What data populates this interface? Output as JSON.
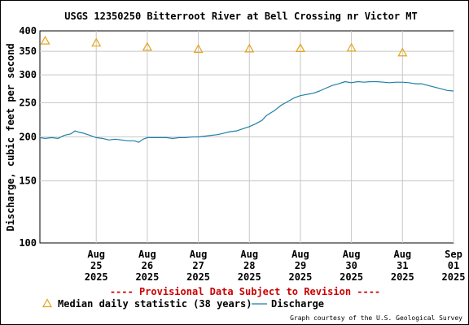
{
  "chart_data": {
    "type": "line",
    "title": "USGS 12350250 Bitterroot River at Bell Crossing nr Victor MT",
    "ylabel": "Discharge, cubic feet per second",
    "xlabel": "",
    "y_scale": "log",
    "ylim": [
      100,
      400
    ],
    "y_ticks": [
      {
        "value": 100,
        "label": "100"
      },
      {
        "value": 150,
        "label": "150"
      },
      {
        "value": 200,
        "label": "200"
      },
      {
        "value": 250,
        "label": "250"
      },
      {
        "value": 300,
        "label": "300"
      },
      {
        "value": 350,
        "label": "350"
      },
      {
        "value": 400,
        "label": "400"
      }
    ],
    "xlim": [
      "2025-08-24T09:30",
      "2025-09-01T12:00"
    ],
    "x_ticks": [
      {
        "value": "2025-08-25T12:00",
        "label": [
          "Aug",
          "25",
          "2025"
        ]
      },
      {
        "value": "2025-08-26T12:00",
        "label": [
          "Aug",
          "26",
          "2025"
        ]
      },
      {
        "value": "2025-08-27T12:00",
        "label": [
          "Aug",
          "27",
          "2025"
        ]
      },
      {
        "value": "2025-08-28T12:00",
        "label": [
          "Aug",
          "28",
          "2025"
        ]
      },
      {
        "value": "2025-08-29T12:00",
        "label": [
          "Aug",
          "29",
          "2025"
        ]
      },
      {
        "value": "2025-08-30T12:00",
        "label": [
          "Aug",
          "30",
          "2025"
        ]
      },
      {
        "value": "2025-08-31T12:00",
        "label": [
          "Aug",
          "31",
          "2025"
        ]
      },
      {
        "value": "2025-09-01T12:00",
        "label": [
          "Sep",
          "01",
          "2025"
        ]
      }
    ],
    "grid": true,
    "series": [
      {
        "name": "Discharge",
        "style": "line",
        "color": "#1f7fa8",
        "points": [
          [
            "2025-08-24T09:30",
            199
          ],
          [
            "2025-08-24T12:00",
            198
          ],
          [
            "2025-08-24T15:00",
            199
          ],
          [
            "2025-08-24T18:00",
            198
          ],
          [
            "2025-08-24T21:00",
            202
          ],
          [
            "2025-08-25T00:00",
            204
          ],
          [
            "2025-08-25T02:00",
            208
          ],
          [
            "2025-08-25T04:00",
            206
          ],
          [
            "2025-08-25T06:00",
            205
          ],
          [
            "2025-08-25T09:00",
            202
          ],
          [
            "2025-08-25T12:00",
            199
          ],
          [
            "2025-08-25T15:00",
            198
          ],
          [
            "2025-08-25T18:00",
            196
          ],
          [
            "2025-08-25T21:00",
            197
          ],
          [
            "2025-08-26T00:00",
            196
          ],
          [
            "2025-08-26T03:00",
            195
          ],
          [
            "2025-08-26T06:00",
            195
          ],
          [
            "2025-08-26T08:00",
            193
          ],
          [
            "2025-08-26T10:00",
            197
          ],
          [
            "2025-08-26T12:00",
            199
          ],
          [
            "2025-08-26T15:00",
            199
          ],
          [
            "2025-08-26T18:00",
            199
          ],
          [
            "2025-08-26T21:00",
            199
          ],
          [
            "2025-08-27T00:00",
            198
          ],
          [
            "2025-08-27T03:00",
            199
          ],
          [
            "2025-08-27T06:00",
            199
          ],
          [
            "2025-08-27T09:00",
            200
          ],
          [
            "2025-08-27T12:00",
            200
          ],
          [
            "2025-08-27T15:00",
            201
          ],
          [
            "2025-08-27T18:00",
            202
          ],
          [
            "2025-08-27T21:00",
            203
          ],
          [
            "2025-08-28T00:00",
            205
          ],
          [
            "2025-08-28T03:00",
            207
          ],
          [
            "2025-08-28T06:00",
            208
          ],
          [
            "2025-08-28T09:00",
            211
          ],
          [
            "2025-08-28T12:00",
            214
          ],
          [
            "2025-08-28T15:00",
            218
          ],
          [
            "2025-08-28T18:00",
            223
          ],
          [
            "2025-08-28T20:00",
            230
          ],
          [
            "2025-08-29T00:00",
            238
          ],
          [
            "2025-08-29T03:00",
            246
          ],
          [
            "2025-08-29T06:00",
            252
          ],
          [
            "2025-08-29T09:00",
            258
          ],
          [
            "2025-08-29T12:00",
            262
          ],
          [
            "2025-08-29T15:00",
            264
          ],
          [
            "2025-08-29T18:00",
            266
          ],
          [
            "2025-08-29T21:00",
            270
          ],
          [
            "2025-08-30T00:00",
            275
          ],
          [
            "2025-08-30T03:00",
            280
          ],
          [
            "2025-08-30T06:00",
            283
          ],
          [
            "2025-08-30T09:00",
            287
          ],
          [
            "2025-08-30T12:00",
            285
          ],
          [
            "2025-08-30T15:00",
            287
          ],
          [
            "2025-08-30T18:00",
            286
          ],
          [
            "2025-08-30T21:00",
            287
          ],
          [
            "2025-08-31T00:00",
            287
          ],
          [
            "2025-08-31T03:00",
            286
          ],
          [
            "2025-08-31T06:00",
            285
          ],
          [
            "2025-08-31T09:00",
            286
          ],
          [
            "2025-08-31T12:00",
            286
          ],
          [
            "2025-08-31T15:00",
            285
          ],
          [
            "2025-08-31T18:00",
            283
          ],
          [
            "2025-08-31T21:00",
            283
          ],
          [
            "2025-09-01T00:00",
            280
          ],
          [
            "2025-09-01T03:00",
            277
          ],
          [
            "2025-09-01T06:00",
            274
          ],
          [
            "2025-09-01T09:00",
            271
          ],
          [
            "2025-09-01T12:00",
            270
          ]
        ]
      },
      {
        "name": "Median daily statistic (38 years)",
        "style": "triangle",
        "color": "#e8a317",
        "points": [
          [
            "2025-08-24T12:00",
            375
          ],
          [
            "2025-08-25T12:00",
            370
          ],
          [
            "2025-08-26T12:00",
            360
          ],
          [
            "2025-08-27T12:00",
            355
          ],
          [
            "2025-08-28T12:00",
            356
          ],
          [
            "2025-08-29T12:00",
            357
          ],
          [
            "2025-08-30T12:00",
            358
          ],
          [
            "2025-08-31T12:00",
            347
          ]
        ]
      }
    ],
    "provisional_note": "---- Provisional Data Subject to Revision ----",
    "legend": [
      {
        "label": "Median daily statistic (38 years)",
        "icon": "triangle-icon"
      },
      {
        "label": "Discharge",
        "icon": "line-icon"
      }
    ],
    "credit": "Graph courtesy of the U.S. Geological Survey"
  }
}
